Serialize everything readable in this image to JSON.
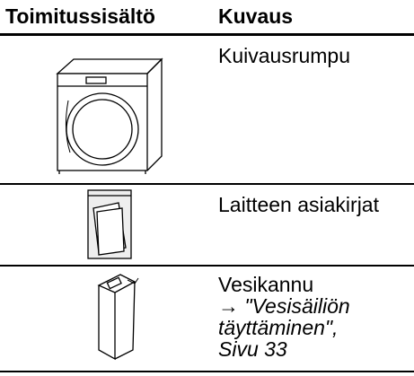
{
  "table": {
    "header": [
      "Toimitussisältö",
      "Kuvaus"
    ],
    "rows": [
      {
        "description": "Kuivausrumpu"
      },
      {
        "description": "Laitteen asiakirjat"
      },
      {
        "description": "Vesikannu",
        "reference": [
          "→ \"Vesisäiliön",
          "täyttäminen\",",
          "Sivu 33"
        ]
      }
    ]
  }
}
